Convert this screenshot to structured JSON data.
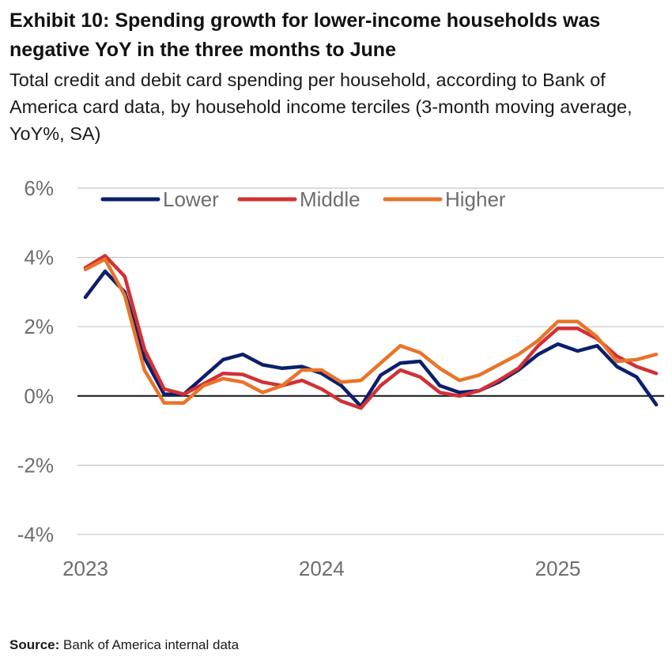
{
  "header": {
    "title": "Exhibit 10: Spending growth for lower-income households was negative YoY in the three months to June",
    "subtitle": "Total credit and debit card spending per household, according to Bank of America card data, by household income terciles (3-month moving average, YoY%, SA)"
  },
  "footer": {
    "source_label": "Source:",
    "source_text": "Bank of America internal data"
  },
  "chart_data": {
    "type": "line",
    "title": "Exhibit 10: Spending growth for lower-income households was negative YoY in the three months to June",
    "xlabel": "",
    "ylabel": "YoY%",
    "ylim": [
      -4,
      6
    ],
    "yticks": [
      6,
      4,
      2,
      0,
      -2,
      -4
    ],
    "ytick_labels": [
      "6%",
      "4%",
      "2%",
      "0%",
      "-2%",
      "-4%"
    ],
    "xlim": [
      0,
      29
    ],
    "xticks": [
      0,
      12,
      24
    ],
    "xtick_labels": [
      "2023",
      "2024",
      "2025"
    ],
    "grid": true,
    "legend_position": "top",
    "x": [
      0,
      1,
      2,
      3,
      4,
      5,
      6,
      7,
      8,
      9,
      10,
      11,
      12,
      13,
      14,
      15,
      16,
      17,
      18,
      19,
      20,
      21,
      22,
      23,
      24,
      25,
      26,
      27,
      28,
      29
    ],
    "series": [
      {
        "name": "Lower",
        "color": "#0b1f6b",
        "values": [
          2.85,
          3.6,
          3.0,
          1.1,
          0.05,
          0.05,
          0.55,
          1.05,
          1.2,
          0.9,
          0.8,
          0.85,
          0.65,
          0.3,
          -0.3,
          0.6,
          0.95,
          1.0,
          0.3,
          0.1,
          0.15,
          0.4,
          0.75,
          1.2,
          1.5,
          1.3,
          1.45,
          0.85,
          0.55,
          -0.25
        ]
      },
      {
        "name": "Middle",
        "color": "#d13135",
        "values": [
          3.7,
          4.05,
          3.45,
          1.35,
          0.2,
          0.05,
          0.35,
          0.65,
          0.62,
          0.4,
          0.3,
          0.45,
          0.2,
          -0.15,
          -0.35,
          0.3,
          0.75,
          0.55,
          0.1,
          0.0,
          0.15,
          0.45,
          0.8,
          1.45,
          1.95,
          1.95,
          1.65,
          1.15,
          0.85,
          0.65
        ]
      },
      {
        "name": "Higher",
        "color": "#e8742a",
        "values": [
          3.65,
          3.95,
          2.9,
          0.75,
          -0.2,
          -0.2,
          0.3,
          0.5,
          0.4,
          0.1,
          0.3,
          0.75,
          0.75,
          0.4,
          0.45,
          0.95,
          1.45,
          1.25,
          0.8,
          0.45,
          0.6,
          0.9,
          1.2,
          1.6,
          2.15,
          2.15,
          1.7,
          1.0,
          1.05,
          1.2
        ]
      }
    ]
  }
}
